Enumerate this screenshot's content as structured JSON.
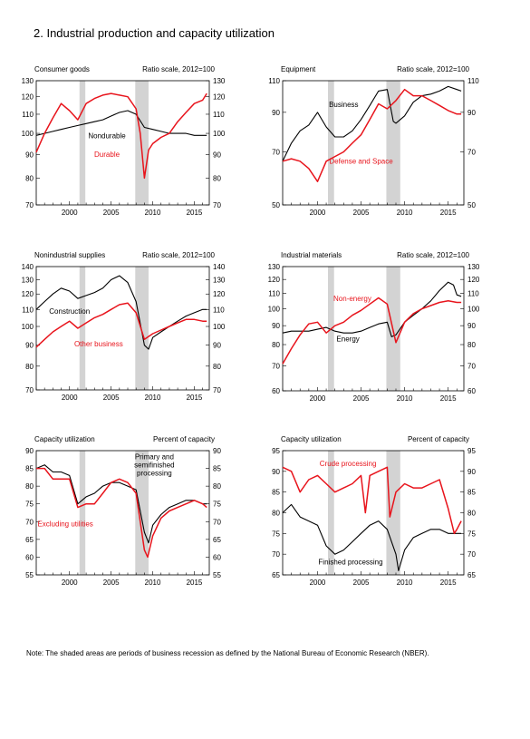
{
  "page": {
    "title": "2.  Industrial production and capacity utilization",
    "note": "Note: The shaded areas are periods of business recession as defined by the National Bureau of Economic Research (NBER)."
  },
  "colors": {
    "black": "#000000",
    "red": "#e8141c",
    "recession": "#d3d3d3"
  },
  "recessions": [
    [
      2001.2,
      2001.9
    ],
    [
      2007.9,
      2009.5
    ]
  ],
  "chart_data": [
    {
      "type": "line",
      "title": "Consumer goods",
      "unit_label": "Ratio scale, 2012=100",
      "xlim": [
        1996,
        2016.8
      ],
      "x_ticks": [
        2000,
        2005,
        2010,
        2015
      ],
      "ylim": [
        70,
        130
      ],
      "y_ticks": [
        70,
        80,
        90,
        100,
        110,
        120,
        130
      ],
      "y_scale": "log",
      "series": [
        {
          "name": "Nondurable",
          "color": "#000000",
          "x": [
            1996,
            1997,
            1998,
            1999,
            2000,
            2001,
            2002,
            2003,
            2004,
            2005,
            2006,
            2007,
            2008,
            2009,
            2010,
            2011,
            2012,
            2013,
            2014,
            2015,
            2016,
            2016.5
          ],
          "y": [
            99,
            100,
            101,
            102,
            103,
            104,
            105,
            106,
            107,
            109,
            111,
            112,
            110,
            103,
            102,
            101,
            100,
            100,
            100,
            99,
            99,
            99
          ]
        },
        {
          "name": "Durable",
          "color": "#e8141c",
          "x": [
            1996,
            1997,
            1998,
            1999,
            2000,
            2001,
            2002,
            2003,
            2004,
            2005,
            2006,
            2007,
            2008,
            2008.5,
            2009,
            2009.5,
            2010,
            2011,
            2012,
            2013,
            2014,
            2015,
            2016,
            2016.5
          ],
          "y": [
            91,
            100,
            108,
            116,
            112,
            107,
            116,
            119,
            121,
            122,
            121,
            120,
            113,
            100,
            80,
            92,
            95,
            98,
            100,
            106,
            111,
            116,
            118,
            122
          ]
        }
      ],
      "labels": [
        {
          "text": "Nondurable",
          "x": 2004.5,
          "y": 97.5,
          "color": "#000000"
        },
        {
          "text": "Durable",
          "x": 2004.5,
          "y": 89,
          "color": "#e8141c"
        }
      ]
    },
    {
      "type": "line",
      "title": "Equipment",
      "unit_label": "Ratio scale, 2012=100",
      "xlim": [
        1996,
        2016.8
      ],
      "x_ticks": [
        2000,
        2005,
        2010,
        2015
      ],
      "ylim": [
        50,
        110
      ],
      "y_ticks": [
        50,
        70,
        90,
        110
      ],
      "y_scale": "log",
      "series": [
        {
          "name": "Business",
          "color": "#000000",
          "x": [
            1996,
            1997,
            1998,
            1999,
            2000,
            2001,
            2002,
            2003,
            2004,
            2005,
            2006,
            2007,
            2008,
            2008.7,
            2009,
            2010,
            2011,
            2012,
            2013,
            2014,
            2015,
            2016,
            2016.5
          ],
          "y": [
            66,
            74,
            80,
            83,
            90,
            82,
            77,
            77,
            80,
            86,
            94,
            103,
            104,
            85,
            84,
            88,
            96,
            100,
            101,
            103,
            106,
            104,
            103
          ]
        },
        {
          "name": "Defense and Space",
          "color": "#e8141c",
          "x": [
            1996,
            1997,
            1998,
            1999,
            2000,
            2001,
            2002,
            2003,
            2004,
            2005,
            2006,
            2007,
            2008,
            2009,
            2010,
            2011,
            2012,
            2013,
            2014,
            2015,
            2016,
            2016.5
          ],
          "y": [
            66,
            67,
            66,
            63,
            58,
            66,
            68,
            70,
            74,
            78,
            86,
            95,
            92,
            97,
            104,
            100,
            100,
            97,
            94,
            91,
            89,
            89
          ]
        }
      ],
      "labels": [
        {
          "text": "Business",
          "x": 2003,
          "y": 93,
          "color": "#000000"
        },
        {
          "text": "Defense and Space",
          "x": 2005,
          "y": 65,
          "color": "#e8141c"
        }
      ]
    },
    {
      "type": "line",
      "title": "Nonindustrial supplies",
      "unit_label": "Ratio scale, 2012=100",
      "xlim": [
        1996,
        2016.8
      ],
      "x_ticks": [
        2000,
        2005,
        2010,
        2015
      ],
      "ylim": [
        70,
        140
      ],
      "y_ticks": [
        70,
        80,
        90,
        100,
        110,
        120,
        130,
        140
      ],
      "y_scale": "log",
      "series": [
        {
          "name": "Construction",
          "color": "#000000",
          "x": [
            1996,
            1997,
            1998,
            1999,
            2000,
            2001,
            2002,
            2003,
            2004,
            2005,
            2006,
            2007,
            2008,
            2009,
            2009.5,
            2010,
            2011,
            2012,
            2013,
            2014,
            2015,
            2016,
            2016.5
          ],
          "y": [
            110,
            115,
            120,
            124,
            122,
            117,
            119,
            121,
            124,
            130,
            133,
            128,
            115,
            90,
            88,
            94,
            97,
            100,
            103,
            106,
            108,
            110,
            110
          ]
        },
        {
          "name": "Other business",
          "color": "#e8141c",
          "x": [
            1996,
            1997,
            1998,
            1999,
            2000,
            2001,
            2002,
            2003,
            2004,
            2005,
            2006,
            2007,
            2008,
            2009,
            2010,
            2011,
            2012,
            2013,
            2014,
            2015,
            2016,
            2016.5
          ],
          "y": [
            89,
            93,
            97,
            100,
            103,
            99,
            102,
            105,
            107,
            110,
            113,
            114,
            108,
            93,
            96,
            98,
            100,
            102,
            104,
            104,
            103,
            103
          ]
        }
      ],
      "labels": [
        {
          "text": "Construction",
          "x": 2000,
          "y": 107.5,
          "color": "#000000"
        },
        {
          "text": "Other business",
          "x": 2003.5,
          "y": 89.5,
          "color": "#e8141c"
        }
      ]
    },
    {
      "type": "line",
      "title": "Industrial materials",
      "unit_label": "Ratio scale, 2012=100",
      "xlim": [
        1996,
        2016.8
      ],
      "x_ticks": [
        2000,
        2005,
        2010,
        2015
      ],
      "ylim": [
        60,
        130
      ],
      "y_ticks": [
        60,
        70,
        80,
        90,
        100,
        110,
        120,
        130
      ],
      "y_scale": "log",
      "series": [
        {
          "name": "Energy",
          "color": "#000000",
          "x": [
            1996,
            1997,
            1998,
            1999,
            2000,
            2001,
            2002,
            2003,
            2004,
            2005,
            2006,
            2007,
            2008,
            2008.5,
            2009,
            2010,
            2011,
            2012,
            2013,
            2014,
            2015,
            2015.6,
            2016,
            2016.5
          ],
          "y": [
            86,
            87,
            87,
            87,
            88,
            89,
            87,
            86,
            86,
            87,
            89,
            91,
            92,
            84,
            85,
            92,
            96,
            100,
            105,
            112,
            118,
            116,
            109,
            108
          ]
        },
        {
          "name": "Non-energy",
          "color": "#e8141c",
          "x": [
            1996,
            1997,
            1998,
            1999,
            2000,
            2001,
            2002,
            2003,
            2004,
            2005,
            2006,
            2007,
            2008,
            2009,
            2010,
            2011,
            2012,
            2013,
            2014,
            2015,
            2016,
            2016.5
          ],
          "y": [
            71,
            78,
            85,
            91,
            92,
            86,
            90,
            92,
            96,
            99,
            103,
            107,
            103,
            81,
            92,
            97,
            100,
            102,
            104,
            105,
            104,
            104
          ]
        }
      ],
      "labels": [
        {
          "text": "Non-energy",
          "x": 2004,
          "y": 105,
          "color": "#e8141c"
        },
        {
          "text": "Energy",
          "x": 2003.5,
          "y": 81.5,
          "color": "#000000"
        }
      ]
    },
    {
      "type": "line",
      "title": "Capacity utilization",
      "unit_label": "Percent of capacity",
      "xlim": [
        1996,
        2016.8
      ],
      "x_ticks": [
        2000,
        2005,
        2010,
        2015
      ],
      "ylim": [
        55,
        90
      ],
      "y_ticks": [
        55,
        60,
        65,
        70,
        75,
        80,
        85,
        90
      ],
      "y_scale": "linear",
      "series": [
        {
          "name": "Primary and semifinished processing",
          "color": "#000000",
          "x": [
            1996,
            1997,
            1998,
            1999,
            2000,
            2001,
            2002,
            2003,
            2004,
            2005,
            2006,
            2007,
            2008,
            2009,
            2009.5,
            2010,
            2011,
            2012,
            2013,
            2014,
            2015,
            2016,
            2016.5
          ],
          "y": [
            85,
            86,
            84,
            84,
            83,
            75,
            77,
            78,
            80,
            81,
            81,
            80,
            79,
            67,
            64,
            69,
            72,
            74,
            75,
            76,
            76,
            75,
            75
          ]
        },
        {
          "name": "Excluding utilities",
          "color": "#e8141c",
          "x": [
            1996,
            1997,
            1998,
            1999,
            2000,
            2001,
            2002,
            2003,
            2004,
            2005,
            2006,
            2007,
            2008,
            2009,
            2009.4,
            2010,
            2011,
            2012,
            2013,
            2014,
            2015,
            2016,
            2016.5
          ],
          "y": [
            85,
            85,
            82,
            82,
            82,
            74,
            75,
            75,
            78,
            81,
            82,
            81,
            78,
            62,
            60,
            66,
            71,
            73,
            74,
            75,
            76,
            75,
            74
          ]
        }
      ],
      "labels": [
        {
          "text": "Primary and",
          "x": 2010.2,
          "y": 87.6,
          "color": "#000000"
        },
        {
          "text": "semifinished",
          "x": 2010.2,
          "y": 85.3,
          "color": "#000000"
        },
        {
          "text": "processing",
          "x": 2010.2,
          "y": 83.0,
          "color": "#000000"
        },
        {
          "text": "Excluding utilities",
          "x": 1999.5,
          "y": 68.7,
          "color": "#e8141c"
        }
      ]
    },
    {
      "type": "line",
      "title": "Capacity utilization",
      "unit_label": "Percent of capacity",
      "xlim": [
        1996,
        2016.8
      ],
      "x_ticks": [
        2000,
        2005,
        2010,
        2015
      ],
      "ylim": [
        65,
        95
      ],
      "y_ticks": [
        65,
        70,
        75,
        80,
        85,
        90,
        95
      ],
      "y_scale": "linear",
      "series": [
        {
          "name": "Finished processing",
          "color": "#000000",
          "x": [
            1996,
            1997,
            1998,
            1999,
            2000,
            2001,
            2002,
            2003,
            2004,
            2005,
            2006,
            2007,
            2008,
            2009,
            2009.3,
            2010,
            2011,
            2012,
            2013,
            2014,
            2015,
            2016,
            2016.5
          ],
          "y": [
            80,
            82,
            79,
            78,
            77,
            72,
            70,
            71,
            73,
            75,
            77,
            78,
            76,
            70,
            66,
            71,
            74,
            75,
            76,
            76,
            75,
            75,
            75
          ]
        },
        {
          "name": "Crude processing",
          "color": "#e8141c",
          "x": [
            1996,
            1997,
            1998,
            1999,
            2000,
            2001,
            2002,
            2003,
            2004,
            2005,
            2005.5,
            2006,
            2007,
            2008,
            2008.3,
            2009,
            2010,
            2011,
            2012,
            2013,
            2014,
            2015,
            2015.7,
            2016,
            2016.5
          ],
          "y": [
            91,
            90,
            85,
            88,
            89,
            87,
            85,
            86,
            87,
            89,
            80,
            89,
            90,
            91,
            79,
            85,
            87,
            86,
            86,
            87,
            88,
            81,
            75,
            76,
            78
          ]
        }
      ],
      "labels": [
        {
          "text": "Crude processing",
          "x": 2003.5,
          "y": 91.3,
          "color": "#e8141c"
        },
        {
          "text": "Finished processing",
          "x": 2003.8,
          "y": 67.5,
          "color": "#000000"
        }
      ]
    }
  ]
}
